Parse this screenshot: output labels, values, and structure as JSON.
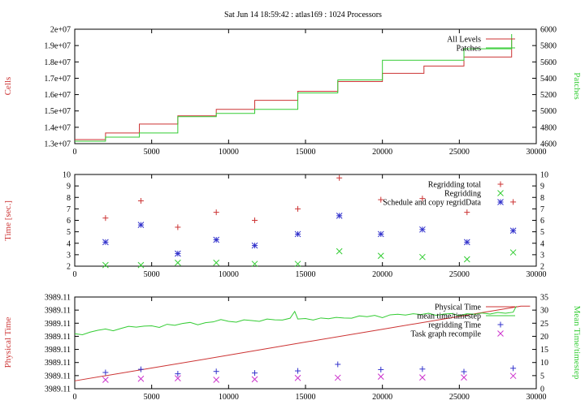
{
  "title": "Sat Jun 14 18:59:42 : atlas169 : 1024 Processors",
  "chart_data": [
    {
      "type": "line",
      "ylabel": "Cells",
      "y2label": "Patches",
      "xlim": [
        0,
        30000
      ],
      "ylim": [
        13000000,
        20000000
      ],
      "y2lim": [
        4600,
        6000
      ],
      "xticks": [
        0,
        5000,
        10000,
        15000,
        20000,
        25000,
        30000
      ],
      "yticks": [
        13000000,
        14000000,
        15000000,
        16000000,
        17000000,
        18000000,
        19000000,
        20000000
      ],
      "ytick_labels": [
        "1.3e+07",
        "1.4e+07",
        "1.5e+07",
        "1.6e+07",
        "1.7e+07",
        "1.8e+07",
        "1.9e+07",
        "2e+07"
      ],
      "y2ticks": [
        4600,
        4800,
        5000,
        5200,
        5400,
        5600,
        5800,
        6000
      ],
      "legend_position": "top-right",
      "grid": false,
      "series": [
        {
          "name": "All Levels",
          "axis": "left",
          "style": "steps",
          "color": "#cc3333",
          "x": [
            0,
            2000,
            4200,
            6700,
            9200,
            11700,
            14500,
            17100,
            20000,
            22700,
            25300,
            28400,
            28400
          ],
          "y": [
            13250000,
            13650000,
            14200000,
            14700000,
            15100000,
            15650000,
            16200000,
            16800000,
            17300000,
            17750000,
            18300000,
            18800000,
            19450000
          ]
        },
        {
          "name": "Patches",
          "axis": "right",
          "style": "steps",
          "color": "#33cc33",
          "x": [
            0,
            2000,
            4200,
            6700,
            9200,
            11700,
            14500,
            17100,
            20000,
            22700,
            25300,
            28400,
            28400
          ],
          "y": [
            4630,
            4680,
            4730,
            4930,
            4970,
            5020,
            5220,
            5380,
            5620,
            5620,
            5760,
            5780,
            5940
          ]
        }
      ]
    },
    {
      "type": "scatter",
      "ylabel": "Time [sec.]",
      "xlim": [
        0,
        30000
      ],
      "ylim": [
        2,
        10
      ],
      "xticks": [
        0,
        5000,
        10000,
        15000,
        20000,
        25000,
        30000
      ],
      "yticks": [
        2,
        3,
        4,
        5,
        6,
        7,
        8,
        9,
        10
      ],
      "y2ticks": [
        2,
        3,
        4,
        5,
        6,
        7,
        8,
        9,
        10
      ],
      "legend_position": "top-right",
      "grid": false,
      "series": [
        {
          "name": "Regridding total",
          "marker": "plus",
          "color": "#cc3333",
          "x": [
            2000,
            4300,
            6700,
            9200,
            11700,
            14500,
            17200,
            19900,
            22600,
            25500,
            28500
          ],
          "y": [
            6.2,
            7.7,
            5.4,
            6.7,
            6.0,
            7.0,
            9.7,
            7.8,
            7.9,
            6.7,
            7.6
          ]
        },
        {
          "name": "Regridding",
          "marker": "x",
          "color": "#33cc33",
          "x": [
            2000,
            4300,
            6700,
            9200,
            11700,
            14500,
            17200,
            19900,
            22600,
            25500,
            28500
          ],
          "y": [
            2.1,
            2.1,
            2.3,
            2.3,
            2.2,
            2.2,
            3.3,
            2.9,
            2.8,
            2.6,
            3.2
          ]
        },
        {
          "name": "Schedule and copy regridData",
          "marker": "star",
          "color": "#3333cc",
          "x": [
            2000,
            4300,
            6700,
            9200,
            11700,
            14500,
            17200,
            19900,
            22600,
            25500,
            28500
          ],
          "y": [
            4.1,
            5.6,
            3.1,
            4.3,
            3.8,
            4.8,
            6.4,
            4.8,
            5.2,
            4.1,
            5.1
          ]
        }
      ]
    },
    {
      "type": "line",
      "ylabel": "Physical Time",
      "y2label": "Mean Time/timestep",
      "xlim": [
        0,
        30000
      ],
      "ylim": [
        0,
        35
      ],
      "y2lim": [
        0,
        35
      ],
      "xticks": [
        0,
        5000,
        10000,
        15000,
        20000,
        25000,
        30000
      ],
      "yticks": [
        0,
        5,
        10,
        15,
        20,
        25,
        30,
        35
      ],
      "ytick_labels": [
        "3989.11",
        "3989.11",
        "3989.11",
        "3989.11",
        "3989.11",
        "3989.11",
        "3989.11",
        "3989.11"
      ],
      "y2ticks": [
        0,
        5,
        10,
        15,
        20,
        25,
        30,
        35
      ],
      "legend_position": "top-right",
      "grid": false,
      "series": [
        {
          "name": "Physical Time",
          "axis": "left",
          "style": "line",
          "color": "#cc3333",
          "x": [
            0,
            5000,
            10000,
            15000,
            20000,
            25000,
            29000,
            29600
          ],
          "y": [
            3.0,
            7.9,
            12.8,
            17.8,
            22.7,
            27.6,
            31.5,
            31.5
          ]
        },
        {
          "name": "mean time/timestep",
          "axis": "right",
          "style": "line",
          "color": "#33cc33",
          "x": [
            0,
            500,
            1000,
            1500,
            2000,
            2500,
            3000,
            3500,
            4000,
            4500,
            5000,
            5500,
            6000,
            6500,
            7000,
            7500,
            8000,
            8500,
            9000,
            9500,
            10000,
            10500,
            11000,
            11500,
            12000,
            12500,
            13000,
            13500,
            14000,
            14300,
            14500,
            15000,
            15500,
            16000,
            16500,
            17000,
            17500,
            18000,
            18500,
            19000,
            19500,
            20000,
            20500,
            21000,
            21500,
            22000,
            22500,
            23000,
            23500,
            24000,
            24500,
            25000,
            25500,
            26000,
            26500,
            27000,
            27500,
            28000,
            28500,
            28700
          ],
          "y": [
            21.0,
            20.6,
            21.6,
            22.3,
            22.8,
            22.1,
            23.0,
            23.8,
            23.5,
            23.9,
            24.0,
            23.4,
            24.6,
            24.2,
            24.9,
            25.3,
            24.4,
            25.2,
            25.5,
            26.4,
            25.7,
            25.4,
            26.3,
            26.0,
            25.7,
            26.6,
            26.3,
            26.2,
            26.9,
            29.5,
            26.6,
            26.8,
            26.2,
            27.0,
            26.7,
            27.2,
            27.0,
            26.9,
            27.8,
            27.5,
            28.0,
            27.1,
            28.2,
            28.4,
            28.1,
            28.6,
            28.3,
            28.8,
            28.0,
            28.5,
            28.7,
            27.9,
            28.6,
            28.4,
            28.9,
            28.5,
            29.1,
            28.8,
            29.2,
            31.5
          ]
        },
        {
          "name": "regridding Time",
          "marker": "plus",
          "color": "#3333cc",
          "x": [
            2000,
            4300,
            6700,
            9200,
            11700,
            14500,
            17100,
            19900,
            22600,
            25300,
            28500
          ],
          "y": [
            6.2,
            7.4,
            5.7,
            6.6,
            6.0,
            6.8,
            9.3,
            7.3,
            7.5,
            6.5,
            7.8
          ]
        },
        {
          "name": "Task graph recompile",
          "marker": "x",
          "color": "#cc33cc",
          "x": [
            2000,
            4300,
            6700,
            9200,
            11700,
            14500,
            17100,
            19900,
            22600,
            25300,
            28500
          ],
          "y": [
            3.4,
            3.8,
            4.0,
            3.4,
            3.6,
            4.1,
            4.2,
            4.6,
            4.3,
            4.3,
            4.9
          ]
        }
      ]
    }
  ]
}
